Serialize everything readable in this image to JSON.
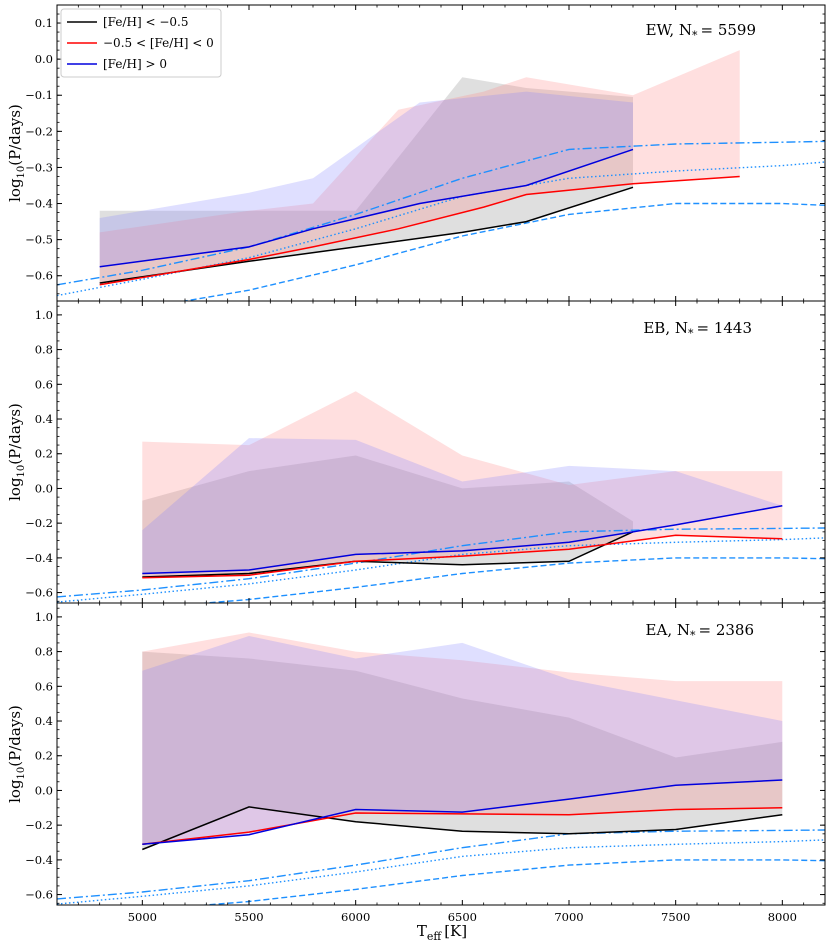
{
  "figure": {
    "xlabel": "T",
    "xlabel_sub": "eff",
    "xlabel_unit": "[K]",
    "ylabel": "log",
    "ylabel_sub": "10",
    "ylabel_tail": "(P/days)"
  },
  "legend": {
    "placement": "top-left of first panel",
    "entries": [
      {
        "label": "[Fe/H] < −0.5",
        "color": "#000000"
      },
      {
        "label": "−0.5 < [Fe/H] < 0",
        "color": "#ff0000"
      },
      {
        "label": "[Fe/H] > 0",
        "color": "#0000dd"
      }
    ]
  },
  "chart_data": [
    {
      "type": "line",
      "panel_label": "EW, N",
      "panel_sub": "*",
      "panel_value": "= 5599",
      "xlim": [
        4600,
        8200
      ],
      "ylim": [
        -0.67,
        0.15
      ],
      "yticks": [
        -0.6,
        -0.5,
        -0.4,
        -0.3,
        -0.2,
        -0.1,
        0.0,
        0.1
      ],
      "series": [
        {
          "name": "[Fe/H] < −0.5",
          "color": "#000000",
          "shade": "#7f7f7f",
          "x": [
            4800,
            5500,
            6000,
            6500,
            6800,
            7300
          ],
          "median": [
            -0.62,
            -0.56,
            -0.52,
            -0.48,
            -0.45,
            -0.355
          ],
          "lower": [
            -0.62,
            -0.56,
            -0.52,
            -0.48,
            -0.45,
            -0.355
          ],
          "upper": [
            -0.42,
            -0.42,
            -0.42,
            -0.05,
            -0.08,
            -0.105
          ]
        },
        {
          "name": "−0.5 < [Fe/H] < 0",
          "color": "#ff0000",
          "shade": "#ff8080",
          "x": [
            4800,
            5500,
            5800,
            6200,
            6600,
            6800,
            7300,
            7800
          ],
          "median": [
            -0.625,
            -0.555,
            -0.52,
            -0.47,
            -0.41,
            -0.375,
            -0.345,
            -0.325
          ],
          "lower": [
            -0.625,
            -0.555,
            -0.52,
            -0.47,
            -0.41,
            -0.375,
            -0.345,
            -0.325
          ],
          "upper": [
            -0.48,
            -0.42,
            -0.4,
            -0.14,
            -0.09,
            -0.05,
            -0.1,
            0.025
          ]
        },
        {
          "name": "[Fe/H] > 0",
          "color": "#0000dd",
          "shade": "#8080ff",
          "x": [
            4800,
            5500,
            5800,
            6300,
            6800,
            7300
          ],
          "median": [
            -0.575,
            -0.52,
            -0.47,
            -0.4,
            -0.35,
            -0.25
          ],
          "lower": [
            -0.575,
            -0.52,
            -0.47,
            -0.4,
            -0.35,
            -0.25
          ],
          "upper": [
            -0.44,
            -0.37,
            -0.33,
            -0.12,
            -0.09,
            -0.12
          ]
        }
      ],
      "reference_curves": [
        {
          "style": "dashdot",
          "color": "#1e90ff",
          "x": [
            4600,
            5000,
            5500,
            6000,
            6500,
            7000,
            7500,
            8000,
            8200
          ],
          "y": [
            -0.625,
            -0.585,
            -0.52,
            -0.43,
            -0.33,
            -0.25,
            -0.235,
            -0.23,
            -0.228
          ]
        },
        {
          "style": "dotted",
          "color": "#1e90ff",
          "x": [
            4600,
            5000,
            5500,
            6000,
            6500,
            7000,
            7500,
            8000,
            8200
          ],
          "y": [
            -0.655,
            -0.61,
            -0.55,
            -0.47,
            -0.38,
            -0.33,
            -0.31,
            -0.295,
            -0.285
          ]
        },
        {
          "style": "dashed",
          "color": "#1e90ff",
          "x": [
            4600,
            5000,
            5500,
            6000,
            6500,
            7000,
            7500,
            8000,
            8200
          ],
          "y": [
            -0.72,
            -0.69,
            -0.64,
            -0.57,
            -0.49,
            -0.43,
            -0.4,
            -0.4,
            -0.405
          ]
        }
      ]
    },
    {
      "type": "line",
      "panel_label": "EB, N",
      "panel_sub": "*",
      "panel_value": "= 1443",
      "xlim": [
        4600,
        8200
      ],
      "ylim": [
        -0.66,
        1.08
      ],
      "yticks": [
        -0.6,
        -0.4,
        -0.2,
        0.0,
        0.2,
        0.4,
        0.6,
        0.8,
        1.0
      ],
      "series": [
        {
          "name": "[Fe/H] < −0.5",
          "color": "#000000",
          "shade": "#7f7f7f",
          "x": [
            5000,
            5500,
            6000,
            6500,
            7000,
            7300
          ],
          "median": [
            -0.51,
            -0.49,
            -0.42,
            -0.44,
            -0.42,
            -0.25
          ],
          "lower": [
            -0.51,
            -0.49,
            -0.42,
            -0.44,
            -0.42,
            -0.25
          ],
          "upper": [
            -0.07,
            0.1,
            0.19,
            0.0,
            0.04,
            -0.19
          ]
        },
        {
          "name": "−0.5 < [Fe/H] < 0",
          "color": "#ff0000",
          "shade": "#ff8080",
          "x": [
            5000,
            5500,
            6000,
            6500,
            7000,
            7500,
            8000
          ],
          "median": [
            -0.515,
            -0.5,
            -0.42,
            -0.39,
            -0.35,
            -0.27,
            -0.29
          ],
          "lower": [
            -0.515,
            -0.5,
            -0.42,
            -0.39,
            -0.35,
            -0.27,
            -0.29
          ],
          "upper": [
            0.27,
            0.25,
            0.56,
            0.19,
            0.02,
            0.1,
            0.1
          ]
        },
        {
          "name": "[Fe/H] > 0",
          "color": "#0000dd",
          "shade": "#8080ff",
          "x": [
            5000,
            5500,
            6000,
            6500,
            7000,
            7500,
            8000
          ],
          "median": [
            -0.49,
            -0.47,
            -0.38,
            -0.36,
            -0.31,
            -0.21,
            -0.1
          ],
          "lower": [
            -0.49,
            -0.47,
            -0.38,
            -0.36,
            -0.31,
            -0.21,
            -0.1
          ],
          "upper": [
            -0.24,
            0.29,
            0.28,
            0.04,
            0.13,
            0.1,
            -0.1
          ]
        }
      ],
      "reference_curves": [
        {
          "style": "dashdot",
          "color": "#1e90ff",
          "x": [
            4600,
            5000,
            5500,
            6000,
            6500,
            7000,
            7500,
            8000,
            8200
          ],
          "y": [
            -0.625,
            -0.585,
            -0.52,
            -0.43,
            -0.33,
            -0.25,
            -0.235,
            -0.23,
            -0.228
          ]
        },
        {
          "style": "dotted",
          "color": "#1e90ff",
          "x": [
            4600,
            5000,
            5500,
            6000,
            6500,
            7000,
            7500,
            8000,
            8200
          ],
          "y": [
            -0.655,
            -0.61,
            -0.55,
            -0.47,
            -0.38,
            -0.33,
            -0.31,
            -0.295,
            -0.285
          ]
        },
        {
          "style": "dashed",
          "color": "#1e90ff",
          "x": [
            4600,
            5000,
            5500,
            6000,
            6500,
            7000,
            7500,
            8000,
            8200
          ],
          "y": [
            -0.72,
            -0.69,
            -0.64,
            -0.57,
            -0.49,
            -0.43,
            -0.4,
            -0.4,
            -0.405
          ]
        }
      ]
    },
    {
      "type": "line",
      "panel_label": "EA, N",
      "panel_sub": "*",
      "panel_value": "= 2386",
      "xlim": [
        4600,
        8200
      ],
      "xticks": [
        5000,
        5500,
        6000,
        6500,
        7000,
        7500,
        8000
      ],
      "ylim": [
        -0.66,
        1.08
      ],
      "yticks": [
        -0.6,
        -0.4,
        -0.2,
        0.0,
        0.2,
        0.4,
        0.6,
        0.8,
        1.0
      ],
      "series": [
        {
          "name": "[Fe/H] < −0.5",
          "color": "#000000",
          "shade": "#7f7f7f",
          "x": [
            5000,
            5500,
            6000,
            6500,
            7000,
            7500,
            8000
          ],
          "median": [
            -0.34,
            -0.095,
            -0.18,
            -0.235,
            -0.25,
            -0.225,
            -0.14
          ],
          "lower": [
            -0.34,
            -0.095,
            -0.18,
            -0.235,
            -0.25,
            -0.225,
            -0.14
          ],
          "upper": [
            0.8,
            0.76,
            0.69,
            0.53,
            0.42,
            0.19,
            0.28
          ]
        },
        {
          "name": "−0.5 < [Fe/H] < 0",
          "color": "#ff0000",
          "shade": "#ff8080",
          "x": [
            5000,
            5500,
            6000,
            6500,
            7000,
            7500,
            8000
          ],
          "median": [
            -0.31,
            -0.24,
            -0.13,
            -0.135,
            -0.14,
            -0.11,
            -0.1
          ],
          "lower": [
            -0.31,
            -0.24,
            -0.13,
            -0.135,
            -0.14,
            -0.11,
            -0.1
          ],
          "upper": [
            0.8,
            0.91,
            0.8,
            0.75,
            0.68,
            0.63,
            0.63
          ]
        },
        {
          "name": "[Fe/H] > 0",
          "color": "#0000dd",
          "shade": "#8080ff",
          "x": [
            5000,
            5500,
            6000,
            6500,
            7000,
            7500,
            8000
          ],
          "median": [
            -0.31,
            -0.255,
            -0.11,
            -0.125,
            -0.05,
            0.03,
            0.06
          ],
          "lower": [
            -0.31,
            -0.255,
            -0.11,
            -0.125,
            -0.05,
            0.03,
            0.06
          ],
          "upper": [
            0.69,
            0.89,
            0.76,
            0.85,
            0.64,
            0.52,
            0.4
          ]
        }
      ],
      "reference_curves": [
        {
          "style": "dashdot",
          "color": "#1e90ff",
          "x": [
            4600,
            5000,
            5500,
            6000,
            6500,
            7000,
            7500,
            8000,
            8200
          ],
          "y": [
            -0.625,
            -0.585,
            -0.52,
            -0.43,
            -0.33,
            -0.25,
            -0.235,
            -0.23,
            -0.228
          ]
        },
        {
          "style": "dotted",
          "color": "#1e90ff",
          "x": [
            4600,
            5000,
            5500,
            6000,
            6500,
            7000,
            7500,
            8000,
            8200
          ],
          "y": [
            -0.655,
            -0.61,
            -0.55,
            -0.47,
            -0.38,
            -0.33,
            -0.31,
            -0.295,
            -0.285
          ]
        },
        {
          "style": "dashed",
          "color": "#1e90ff",
          "x": [
            4600,
            5000,
            5500,
            6000,
            6500,
            7000,
            7500,
            8000,
            8200
          ],
          "y": [
            -0.72,
            -0.69,
            -0.64,
            -0.57,
            -0.49,
            -0.43,
            -0.4,
            -0.4,
            -0.405
          ]
        }
      ]
    }
  ]
}
